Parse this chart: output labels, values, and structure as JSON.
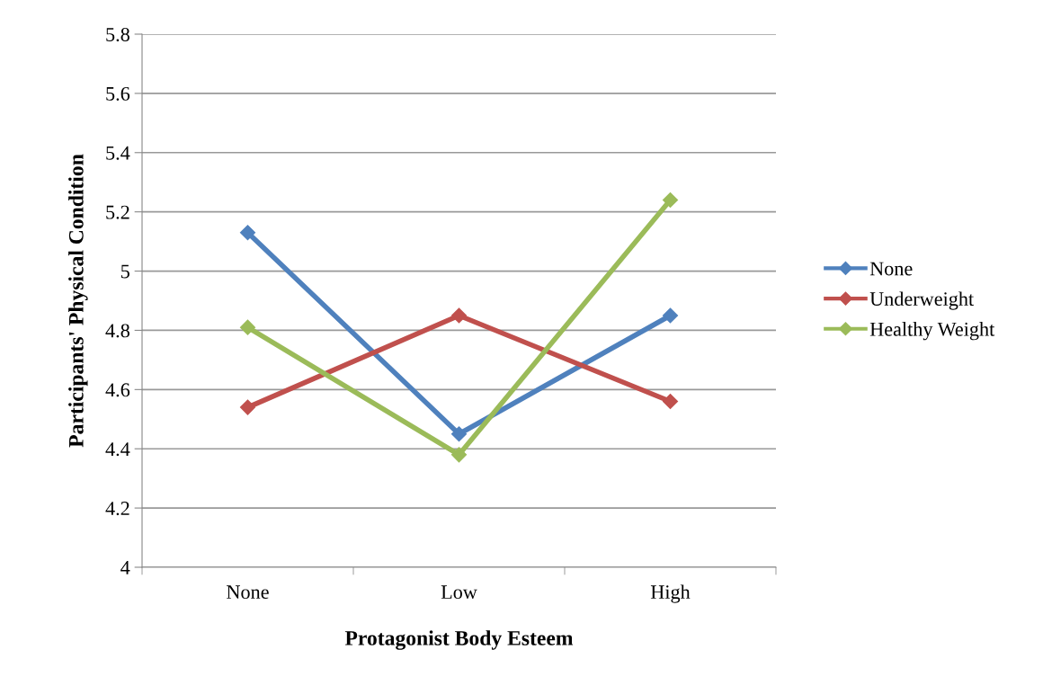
{
  "chart_data": {
    "type": "line",
    "xlabel": "Protagonist Body Esteem",
    "ylabel": "Participants' Physical Condition",
    "categories": [
      "None",
      "Low",
      "High"
    ],
    "series": [
      {
        "name": "None",
        "color": "#4f81bd",
        "values": [
          5.13,
          4.45,
          4.85
        ]
      },
      {
        "name": "Underweight",
        "color": "#c0504d",
        "values": [
          4.54,
          4.85,
          4.56
        ]
      },
      {
        "name": "Healthy Weight",
        "color": "#9bbb59",
        "values": [
          4.81,
          4.38,
          5.24
        ]
      }
    ],
    "ylim": [
      4,
      5.8
    ],
    "yticks": [
      4,
      4.2,
      4.4,
      4.6,
      4.8,
      5,
      5.2,
      5.4,
      5.6,
      5.8
    ],
    "grid": "y",
    "legend": "right",
    "marker": "diamond",
    "line_style": "solid"
  }
}
